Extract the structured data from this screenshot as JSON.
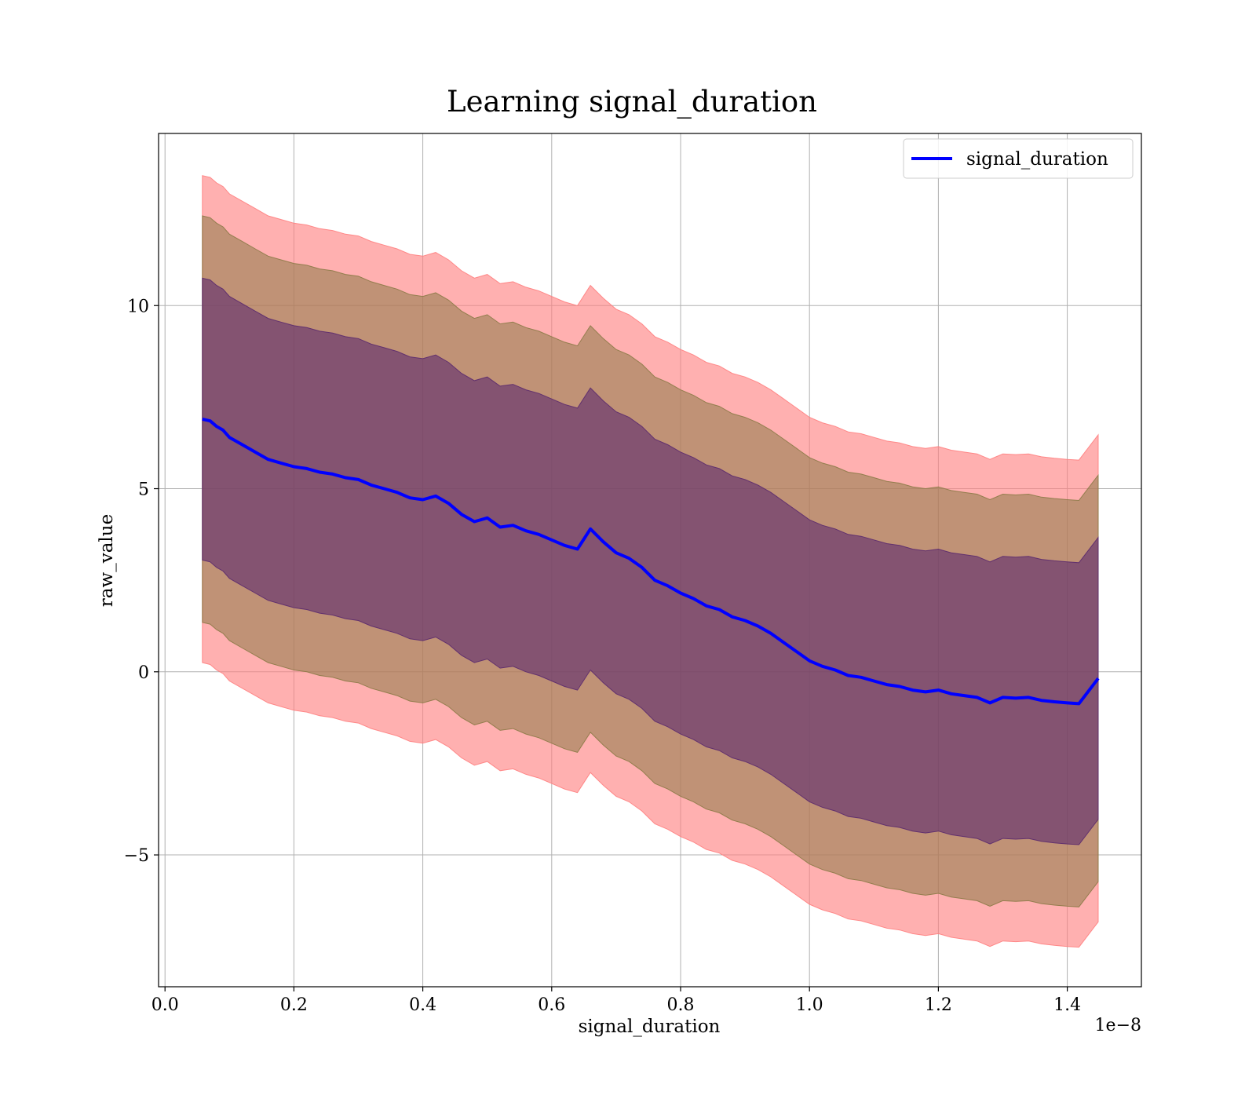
{
  "chart_data": {
    "type": "line",
    "title": "Learning signal_duration",
    "xlabel": "signal_duration",
    "ylabel": "raw_value",
    "x_scale_label": "1e−8",
    "xlim": [
      -0.01,
      1.515
    ],
    "ylim": [
      -8.6,
      14.7
    ],
    "x_ticks": [
      0.0,
      0.2,
      0.4,
      0.6,
      0.8,
      1.0,
      1.2,
      1.4
    ],
    "x_tick_labels": [
      "0.0",
      "0.2",
      "0.4",
      "0.6",
      "0.8",
      "1.0",
      "1.2",
      "1.4"
    ],
    "y_ticks": [
      -5,
      0,
      5,
      10
    ],
    "y_tick_labels": [
      "−5",
      "0",
      "5",
      "10"
    ],
    "grid": true,
    "legend_position": "top-right",
    "colors": {
      "mean_line": "#0000ff",
      "band_3sigma": "#ff7f7f",
      "band_2sigma": "#8c7a47",
      "band_1sigma": "#5b2a6e",
      "grid": "#b0b0b0"
    },
    "series": [
      {
        "name": "signal_duration",
        "x": [
          0.058,
          0.07,
          0.08,
          0.09,
          0.1,
          0.12,
          0.14,
          0.16,
          0.18,
          0.2,
          0.22,
          0.24,
          0.26,
          0.28,
          0.3,
          0.32,
          0.34,
          0.36,
          0.38,
          0.4,
          0.42,
          0.44,
          0.46,
          0.48,
          0.5,
          0.52,
          0.54,
          0.56,
          0.58,
          0.6,
          0.62,
          0.64,
          0.66,
          0.68,
          0.7,
          0.72,
          0.74,
          0.76,
          0.78,
          0.8,
          0.82,
          0.84,
          0.86,
          0.88,
          0.9,
          0.92,
          0.94,
          0.96,
          0.98,
          1.0,
          1.02,
          1.04,
          1.06,
          1.08,
          1.1,
          1.12,
          1.14,
          1.16,
          1.18,
          1.2,
          1.22,
          1.24,
          1.26,
          1.28,
          1.3,
          1.32,
          1.34,
          1.36,
          1.38,
          1.4,
          1.418,
          1.448
        ],
        "y": [
          6.9,
          6.85,
          6.7,
          6.6,
          6.4,
          6.2,
          6.0,
          5.8,
          5.7,
          5.6,
          5.55,
          5.45,
          5.4,
          5.3,
          5.25,
          5.1,
          5.0,
          4.9,
          4.75,
          4.7,
          4.8,
          4.6,
          4.3,
          4.1,
          4.2,
          3.95,
          4.0,
          3.85,
          3.75,
          3.6,
          3.45,
          3.35,
          3.9,
          3.55,
          3.25,
          3.1,
          2.85,
          2.5,
          2.35,
          2.15,
          2.0,
          1.8,
          1.7,
          1.5,
          1.4,
          1.25,
          1.05,
          0.8,
          0.55,
          0.3,
          0.15,
          0.05,
          -0.1,
          -0.15,
          -0.25,
          -0.35,
          -0.4,
          -0.5,
          -0.55,
          -0.5,
          -0.6,
          -0.65,
          -0.7,
          -0.85,
          -0.7,
          -0.72,
          -0.7,
          -0.78,
          -0.82,
          -0.85,
          -0.87,
          -0.18
        ]
      }
    ],
    "bands": [
      {
        "sigma": 3,
        "half_width": 6.65
      },
      {
        "sigma": 2,
        "half_width": 5.55
      },
      {
        "sigma": 1,
        "half_width": 3.85
      }
    ]
  }
}
